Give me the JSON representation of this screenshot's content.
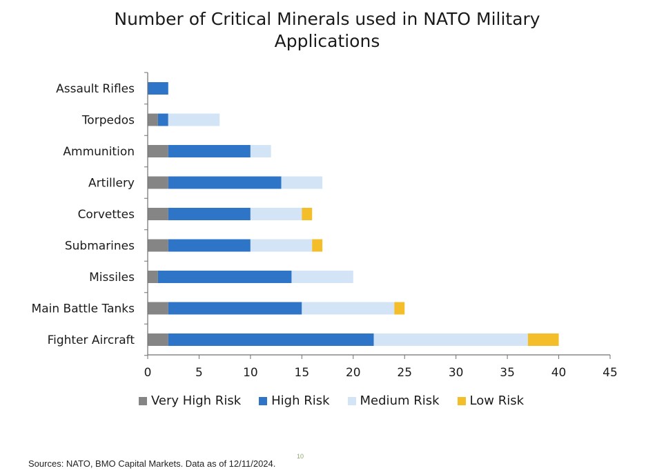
{
  "chart_data": {
    "type": "bar",
    "orientation": "horizontal",
    "stacked": true,
    "title_lines": [
      "Number of Critical Minerals used in NATO Military",
      "Applications"
    ],
    "categories": [
      "Assault Rifles",
      "Torpedos",
      "Ammunition",
      "Artillery",
      "Corvettes",
      "Submarines",
      "Missiles",
      "Main Battle Tanks",
      "Fighter Aircraft"
    ],
    "series": [
      {
        "name": "Very High Risk",
        "color": "#858585",
        "values": [
          0,
          1,
          2,
          2,
          2,
          2,
          1,
          2,
          2
        ]
      },
      {
        "name": "High Risk",
        "color": "#2e75c7",
        "values": [
          2,
          1,
          8,
          11,
          8,
          8,
          13,
          13,
          20
        ]
      },
      {
        "name": "Medium Risk",
        "color": "#d2e4f5",
        "values": [
          0,
          5,
          2,
          4,
          5,
          6,
          6,
          9,
          15
        ]
      },
      {
        "name": "Low Risk",
        "color": "#f4bd2a",
        "values": [
          0,
          0,
          0,
          0,
          1,
          1,
          0,
          1,
          3
        ]
      }
    ],
    "xlim": [
      0,
      45
    ],
    "xticks": [
      "0",
      "5",
      "10",
      "15",
      "20",
      "25",
      "30",
      "35",
      "40",
      "45"
    ],
    "xlabel": "",
    "ylabel": "",
    "grid": false,
    "legend_position": "bottom"
  },
  "footer": {
    "source": "Sources: NATO, BMO Capital Markets. Data as of 12/11/2024.",
    "page_number": "10"
  }
}
